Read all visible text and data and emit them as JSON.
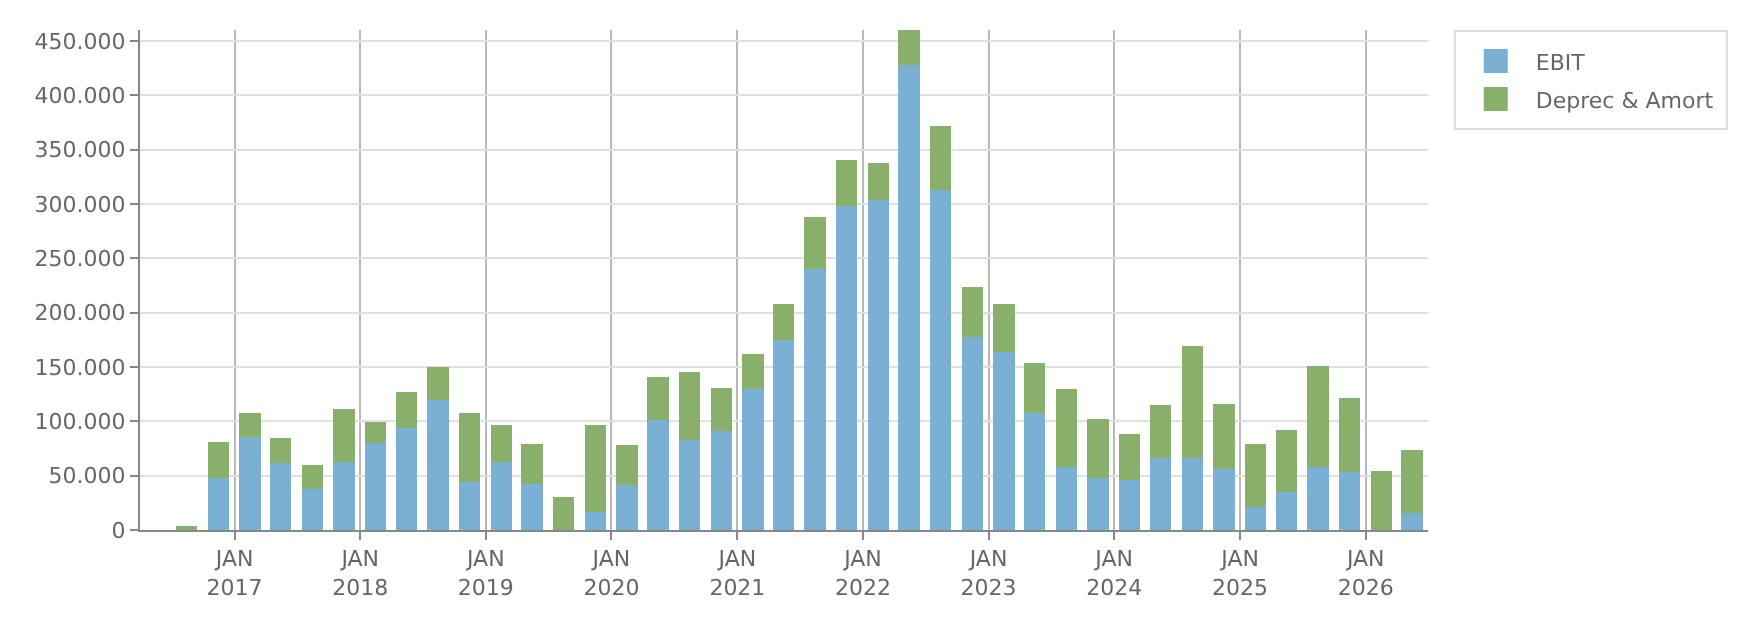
{
  "chart_data": {
    "type": "bar",
    "stacked": true,
    "x": [
      "2016-08-15",
      "2016-11-15",
      "2017-02-15",
      "2017-05-15",
      "2017-08-15",
      "2017-11-15",
      "2018-02-15",
      "2018-05-15",
      "2018-08-15",
      "2018-11-15",
      "2019-02-15",
      "2019-05-15",
      "2019-08-15",
      "2019-11-15",
      "2020-02-15",
      "2020-05-15",
      "2020-08-15",
      "2020-11-15",
      "2021-02-15",
      "2021-05-15",
      "2021-08-15",
      "2021-11-15",
      "2022-02-15",
      "2022-05-15",
      "2022-08-15",
      "2022-11-15",
      "2023-02-15",
      "2023-05-15",
      "2023-08-15",
      "2023-11-15",
      "2024-02-15",
      "2024-05-15",
      "2024-08-15",
      "2024-11-15",
      "2025-02-15",
      "2025-05-15",
      "2025-08-15",
      "2025-11-15",
      "2026-02-15",
      "2026-05-15"
    ],
    "series": [
      {
        "name": "EBIT",
        "color": "#7ab0d3",
        "values": [
          0,
          48000,
          86000,
          62000,
          38000,
          63000,
          80000,
          94000,
          120000,
          44000,
          63000,
          42000,
          0,
          17000,
          41000,
          101000,
          83000,
          91000,
          130000,
          175000,
          240000,
          298000,
          304000,
          428000,
          313000,
          178000,
          164000,
          108000,
          58000,
          48000,
          46000,
          66000,
          66000,
          56000,
          21000,
          35000,
          58000,
          53000,
          0,
          16000
        ]
      },
      {
        "name": "Deprec & Amort",
        "color": "#88b06a",
        "values": [
          2000,
          33000,
          22000,
          23000,
          22000,
          48000,
          19000,
          33000,
          30000,
          64000,
          34000,
          37000,
          30000,
          80000,
          37000,
          40000,
          62000,
          40000,
          32000,
          33000,
          48000,
          42000,
          34000,
          32000,
          59000,
          46000,
          44000,
          46000,
          72000,
          54000,
          42000,
          49000,
          103000,
          60000,
          58000,
          57000,
          93000,
          68000,
          54000,
          58000
        ]
      }
    ],
    "xlim": [
      "2016-04-01",
      "2026-07-01"
    ],
    "xticks": [
      {
        "value": "2017-01-01",
        "label": "JAN\n2017"
      },
      {
        "value": "2018-01-01",
        "label": "JAN\n2018"
      },
      {
        "value": "2019-01-01",
        "label": "JAN\n2019"
      },
      {
        "value": "2020-01-01",
        "label": "JAN\n2020"
      },
      {
        "value": "2021-01-01",
        "label": "JAN\n2021"
      },
      {
        "value": "2022-01-01",
        "label": "JAN\n2022"
      },
      {
        "value": "2023-01-01",
        "label": "JAN\n2023"
      },
      {
        "value": "2024-01-01",
        "label": "JAN\n2024"
      },
      {
        "value": "2025-01-01",
        "label": "JAN\n2025"
      },
      {
        "value": "2026-01-01",
        "label": "JAN\n2026"
      }
    ],
    "ylim": [
      0,
      460000
    ],
    "yticks": [
      0,
      {
        "value": 50000,
        "label": "50.000"
      },
      {
        "value": 100000,
        "label": "100.000"
      },
      {
        "value": 150000,
        "label": "150.000"
      },
      {
        "value": 200000,
        "label": "200.000"
      },
      {
        "value": 250000,
        "label": "250.000"
      },
      {
        "value": 300000,
        "label": "300.000"
      },
      {
        "value": 350000,
        "label": "350.000"
      },
      {
        "value": 400000,
        "label": "400.000"
      },
      {
        "value": 450000,
        "label": "450.000"
      }
    ],
    "grid": true,
    "legend": "top right"
  }
}
